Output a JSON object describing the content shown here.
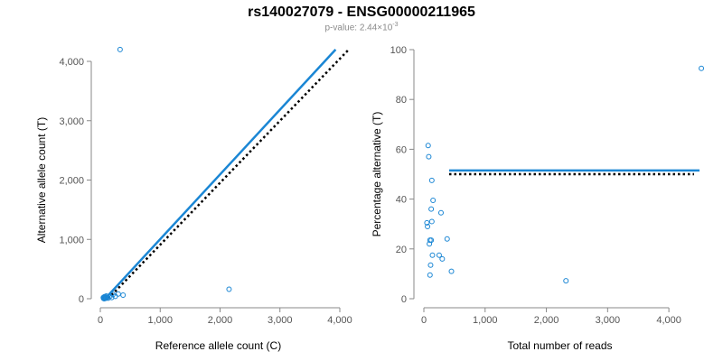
{
  "header": {
    "title": "rs140027079 - ENSG00000211965",
    "pvalue_prefix": "p-value: 2.44×10",
    "pvalue_exponent": "-3"
  },
  "colors": {
    "points": "#1a86d4",
    "fit_line": "#1a86d4",
    "reference_line": "#000000",
    "axis": "#888888"
  },
  "chart_data": [
    {
      "type": "scatter",
      "xlabel": "Reference allele count (C)",
      "ylabel": "Alternative allele count (T)",
      "xlim": [
        0,
        4000
      ],
      "ylim": [
        0,
        4000
      ],
      "xticks": [
        0,
        1000,
        2000,
        3000,
        4000
      ],
      "xtick_labels": [
        "0",
        "1,000",
        "2,000",
        "3,000",
        "4,000"
      ],
      "yticks": [
        0,
        1000,
        2000,
        3000,
        4000
      ],
      "ytick_labels": [
        "0",
        "1,000",
        "2,000",
        "3,000",
        "4,000"
      ],
      "points": [
        [
          330,
          4200
        ],
        [
          2150,
          160
        ],
        [
          380,
          60
        ],
        [
          300,
          80
        ],
        [
          250,
          40
        ],
        [
          210,
          70
        ],
        [
          190,
          20
        ],
        [
          160,
          40
        ],
        [
          130,
          10
        ],
        [
          110,
          20
        ],
        [
          100,
          45
        ],
        [
          95,
          15
        ],
        [
          90,
          30
        ],
        [
          85,
          5
        ],
        [
          80,
          25
        ],
        [
          75,
          10
        ],
        [
          70,
          35
        ],
        [
          65,
          0
        ],
        [
          60,
          15
        ],
        [
          55,
          5
        ],
        [
          50,
          20
        ]
      ],
      "fit_line": [
        [
          80,
          0
        ],
        [
          3930,
          4200
        ]
      ],
      "reference_line": [
        [
          130,
          0
        ],
        [
          4150,
          4200
        ]
      ],
      "grid": false
    },
    {
      "type": "scatter",
      "xlabel": "Total number of reads",
      "ylabel": "Percentage alternative (T)",
      "xlim": [
        0,
        4500
      ],
      "ylim": [
        0,
        100
      ],
      "xticks": [
        0,
        1000,
        2000,
        3000,
        4000
      ],
      "xtick_labels": [
        "0",
        "1,000",
        "2,000",
        "3,000",
        "4,000"
      ],
      "yticks": [
        0,
        20,
        40,
        60,
        80,
        100
      ],
      "ytick_labels": [
        "0",
        "20",
        "40",
        "60",
        "80",
        "100"
      ],
      "points": [
        [
          4530,
          92.5
        ],
        [
          2320,
          7.2
        ],
        [
          70,
          61.5
        ],
        [
          80,
          57
        ],
        [
          130,
          47.5
        ],
        [
          150,
          39.5
        ],
        [
          120,
          36
        ],
        [
          280,
          34.5
        ],
        [
          50,
          30.5
        ],
        [
          60,
          29
        ],
        [
          130,
          31
        ],
        [
          380,
          24
        ],
        [
          100,
          23.5
        ],
        [
          120,
          23.5
        ],
        [
          90,
          22
        ],
        [
          140,
          17.5
        ],
        [
          250,
          17.5
        ],
        [
          300,
          16
        ],
        [
          110,
          13.5
        ],
        [
          450,
          11
        ],
        [
          100,
          9.5
        ]
      ],
      "fit_y": 51.5,
      "reference_y": 50,
      "grid": false
    }
  ]
}
